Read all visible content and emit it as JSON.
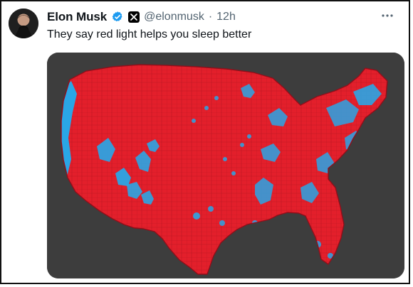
{
  "tweet": {
    "author_name": "Elon Musk",
    "handle": "@elonmusk",
    "separator": "·",
    "time": "12h",
    "text": "They say red light helps you sleep better"
  },
  "icons": {
    "avatar": "avatar-image",
    "verified": "verified-badge-icon",
    "affiliate": "x-logo-icon",
    "more": "more-options-icon"
  },
  "media": {
    "type": "image",
    "background_color": "#3d3d3d",
    "map_red": "#e31f2b",
    "map_blue": "#2aa6e6",
    "border_color": "#9b101c"
  }
}
